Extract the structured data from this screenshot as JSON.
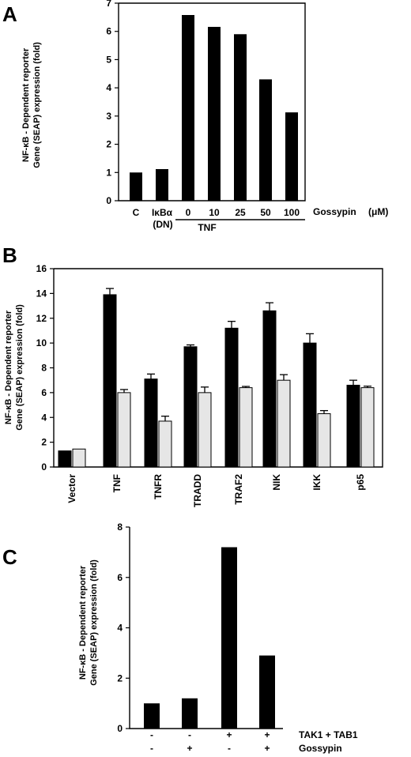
{
  "chart_data": [
    {
      "panel": "A",
      "type": "bar",
      "ylabel_lines": [
        "NF-κB - Dependent reporter",
        "Gene (SEAP) expression (fold)"
      ],
      "ylim": [
        0,
        7
      ],
      "yticks": [
        0,
        1,
        2,
        3,
        4,
        5,
        6,
        7
      ],
      "categories": [
        "C",
        "IκBα",
        "0",
        "10",
        "25",
        "50",
        "100"
      ],
      "values": [
        1.0,
        1.12,
        6.58,
        6.16,
        5.9,
        4.3,
        3.13
      ],
      "sublabels": [
        {
          "text": "(DN)",
          "under": "IκBα"
        },
        {
          "text": "TNF",
          "under_range": [
            "0",
            "100"
          ]
        }
      ],
      "side_label": "Gossypin",
      "side_unit": "(μM)",
      "bar_color": "#000000"
    },
    {
      "panel": "B",
      "type": "bar",
      "ylabel_lines": [
        "NF-κB - Dependent reporter",
        "Gene (SEAP) expression (fold)"
      ],
      "ylim": [
        0,
        16
      ],
      "yticks": [
        0,
        2,
        4,
        6,
        8,
        10,
        12,
        14,
        16
      ],
      "categories": [
        "Vector",
        "TNF",
        "TNFR",
        "TRADD",
        "TRAF2",
        "NIK",
        "IKK",
        "p65"
      ],
      "series": [
        {
          "values": [
            1.3,
            13.9,
            7.1,
            9.7,
            11.2,
            12.6,
            10.0,
            6.6
          ],
          "errors": [
            0,
            0.5,
            0.4,
            0.15,
            0.55,
            0.65,
            0.75,
            0.4
          ],
          "color": "#000000"
        },
        {
          "values": [
            1.45,
            6.0,
            3.7,
            6.0,
            6.4,
            7.0,
            4.3,
            6.4
          ],
          "errors": [
            0,
            0.25,
            0.4,
            0.45,
            0.1,
            0.45,
            0.25,
            0.12
          ],
          "color": "#e6e6e6"
        }
      ]
    },
    {
      "panel": "C",
      "type": "bar",
      "ylabel_lines": [
        "NF-κB - Dependent reporter",
        "Gene (SEAP) expression (fold)"
      ],
      "ylim": [
        0,
        8
      ],
      "yticks": [
        0,
        2,
        4,
        6,
        8
      ],
      "values": [
        1.0,
        1.2,
        7.2,
        2.9
      ],
      "sign_rows": [
        {
          "label": "TAK1 + TAB1",
          "signs": [
            "-",
            "-",
            "+",
            "+"
          ]
        },
        {
          "label": "Gossypin",
          "signs": [
            "-",
            "+",
            "-",
            "+"
          ]
        }
      ],
      "bar_color": "#000000"
    }
  ]
}
